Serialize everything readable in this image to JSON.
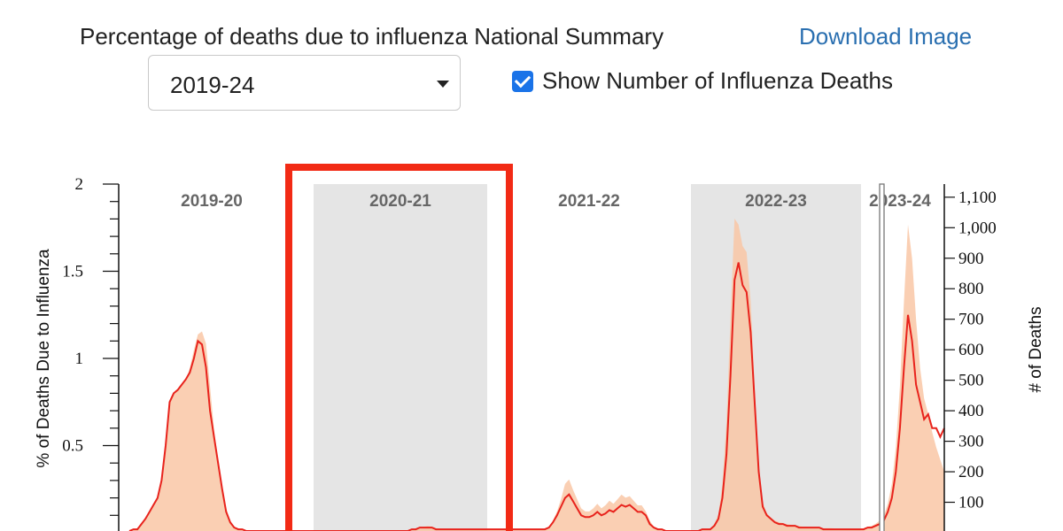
{
  "header": {
    "title": "Percentage of deaths due to influenza National Summary",
    "download_label": "Download Image"
  },
  "season_select": {
    "value": "2019-24"
  },
  "show_deaths_checkbox": {
    "label": "Show Number of Influenza Deaths",
    "checked": true
  },
  "colors": {
    "line": "#e8231c",
    "fill": "#f9c7a6",
    "shade": "#e5e5e5",
    "highlight": "#f22a15"
  },
  "chart_data": {
    "type": "area",
    "left_axis": {
      "label": "% of Deaths Due to Influenza",
      "range": [
        0,
        2
      ],
      "ticks": [
        0.5,
        1,
        1.5,
        2
      ],
      "tick_labels": [
        "0.5",
        "1",
        "1.5",
        "2"
      ]
    },
    "right_axis": {
      "label": "# of Deaths",
      "range": [
        0,
        1143
      ],
      "ticks": [
        100,
        200,
        300,
        400,
        500,
        600,
        700,
        800,
        900,
        1000,
        1100
      ],
      "tick_labels": [
        "100",
        "200",
        "300",
        "400",
        "500",
        "600",
        "700",
        "800",
        "900",
        "1,000",
        "1,100"
      ]
    },
    "seasons": [
      {
        "label": "2019-20",
        "shaded": false
      },
      {
        "label": "2020-21",
        "shaded": true,
        "highlighted": true
      },
      {
        "label": "2021-22",
        "shaded": false
      },
      {
        "label": "2022-23",
        "shaded": true
      },
      {
        "label": "2023-24",
        "shaded": false
      }
    ],
    "series": [
      {
        "name": "% of Deaths Due to Influenza",
        "values": [
          0.01,
          0.02,
          0.02,
          0.05,
          0.08,
          0.12,
          0.16,
          0.2,
          0.3,
          0.5,
          0.75,
          0.8,
          0.82,
          0.85,
          0.88,
          0.92,
          1.0,
          1.1,
          1.08,
          0.95,
          0.7,
          0.55,
          0.4,
          0.25,
          0.12,
          0.06,
          0.03,
          0.02,
          0.02,
          0.01,
          0.01,
          0.01,
          0.01,
          0.01,
          0.01,
          0.01,
          0.01,
          0.01,
          0.01,
          0.01,
          0.01,
          0.01,
          0.01,
          0.01,
          0.01,
          0.01,
          0.01,
          0.01,
          0.01,
          0.01,
          0.01,
          0.01,
          0.01,
          0.01,
          0.01,
          0.01,
          0.01,
          0.01,
          0.01,
          0.01,
          0.01,
          0.01,
          0.01,
          0.01,
          0.01,
          0.01,
          0.01,
          0.01,
          0.01,
          0.01,
          0.02,
          0.02,
          0.03,
          0.03,
          0.03,
          0.03,
          0.02,
          0.02,
          0.02,
          0.02,
          0.02,
          0.02,
          0.02,
          0.02,
          0.02,
          0.02,
          0.02,
          0.02,
          0.02,
          0.02,
          0.02,
          0.02,
          0.02,
          0.02,
          0.02,
          0.02,
          0.02,
          0.02,
          0.02,
          0.02,
          0.02,
          0.02,
          0.02,
          0.02,
          0.03,
          0.06,
          0.1,
          0.15,
          0.2,
          0.22,
          0.18,
          0.14,
          0.1,
          0.09,
          0.09,
          0.1,
          0.12,
          0.1,
          0.11,
          0.13,
          0.12,
          0.14,
          0.16,
          0.15,
          0.16,
          0.14,
          0.12,
          0.12,
          0.1,
          0.05,
          0.03,
          0.02,
          0.02,
          0.01,
          0.01,
          0.01,
          0.01,
          0.01,
          0.01,
          0.01,
          0.01,
          0.01,
          0.02,
          0.02,
          0.02,
          0.04,
          0.08,
          0.2,
          0.45,
          0.9,
          1.45,
          1.55,
          1.42,
          1.38,
          1.15,
          0.75,
          0.35,
          0.15,
          0.1,
          0.08,
          0.06,
          0.05,
          0.05,
          0.04,
          0.04,
          0.04,
          0.03,
          0.03,
          0.03,
          0.03,
          0.03,
          0.03,
          0.02,
          0.02,
          0.02,
          0.02,
          0.02,
          0.02,
          0.02,
          0.02,
          0.02,
          0.02,
          0.02,
          0.03,
          0.03,
          0.04,
          0.05,
          0.07,
          0.12,
          0.2,
          0.35,
          0.6,
          0.95,
          1.25,
          1.1,
          0.85,
          0.75,
          0.65,
          0.68,
          0.6,
          0.6,
          0.55,
          0.6
        ]
      },
      {
        "name": "# of Deaths",
        "values": [
          5,
          10,
          15,
          30,
          50,
          70,
          90,
          120,
          180,
          300,
          430,
          460,
          470,
          490,
          500,
          540,
          600,
          650,
          660,
          620,
          480,
          340,
          240,
          150,
          80,
          40,
          20,
          12,
          10,
          8,
          8,
          8,
          8,
          8,
          8,
          8,
          8,
          8,
          8,
          8,
          8,
          8,
          8,
          8,
          8,
          8,
          8,
          8,
          8,
          8,
          8,
          8,
          8,
          8,
          8,
          8,
          8,
          8,
          8,
          8,
          8,
          8,
          8,
          8,
          8,
          8,
          8,
          8,
          8,
          8,
          10,
          12,
          16,
          20,
          22,
          20,
          15,
          14,
          12,
          12,
          12,
          12,
          12,
          12,
          12,
          12,
          12,
          12,
          12,
          12,
          12,
          12,
          12,
          12,
          12,
          12,
          12,
          12,
          12,
          12,
          12,
          12,
          12,
          12,
          18,
          40,
          70,
          110,
          160,
          175,
          140,
          110,
          80,
          70,
          70,
          80,
          95,
          80,
          90,
          105,
          95,
          110,
          125,
          115,
          120,
          105,
          90,
          90,
          70,
          40,
          20,
          14,
          12,
          8,
          8,
          8,
          8,
          8,
          8,
          8,
          8,
          8,
          14,
          14,
          14,
          30,
          60,
          160,
          360,
          700,
          1030,
          1010,
          940,
          920,
          760,
          480,
          220,
          100,
          65,
          50,
          40,
          35,
          32,
          28,
          26,
          25,
          22,
          20,
          20,
          18,
          18,
          18,
          15,
          15,
          15,
          14,
          14,
          14,
          14,
          14,
          14,
          14,
          14,
          20,
          22,
          30,
          40,
          55,
          95,
          160,
          280,
          480,
          760,
          1010,
          900,
          700,
          540,
          440,
          390,
          330,
          280,
          240,
          200
        ]
      }
    ]
  }
}
